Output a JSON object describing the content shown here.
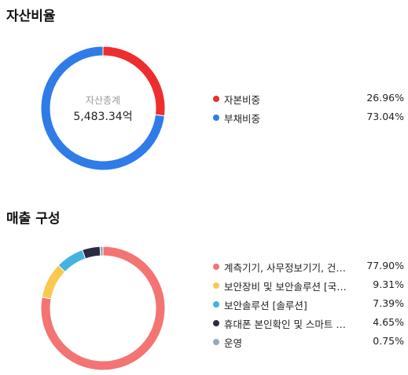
{
  "asset_section": {
    "title": "자산비율",
    "center_caption": "자산총계",
    "center_value": "5,483.34억"
  },
  "sales_section": {
    "title": "매출 구성"
  },
  "chart_data": [
    {
      "type": "pie",
      "title": "자산비율",
      "series": [
        {
          "name": "자본비중",
          "value": 26.96,
          "display": "26.96%",
          "color": "#EE2E2E"
        },
        {
          "name": "부채비중",
          "value": 73.04,
          "display": "73.04%",
          "color": "#2F7CE9"
        }
      ],
      "legend": "right"
    },
    {
      "type": "pie",
      "title": "매출 구성",
      "series": [
        {
          "name": "계측기기, 사무정보기기, 건…",
          "value": 77.9,
          "display": "77.90%",
          "color": "#F47474"
        },
        {
          "name": "보안장비 및 보안솔루션 [국…",
          "value": 9.31,
          "display": "9.31%",
          "color": "#F9C84E"
        },
        {
          "name": "보안솔루션 [솔루션]",
          "value": 7.39,
          "display": "7.39%",
          "color": "#43B4E0"
        },
        {
          "name": "휴대폰 본인확인 및 스마트 …",
          "value": 4.65,
          "display": "4.65%",
          "color": "#2A2C44"
        },
        {
          "name": "운영",
          "value": 0.75,
          "display": "0.75%",
          "color": "#93A9BE"
        }
      ],
      "legend": "right"
    }
  ]
}
